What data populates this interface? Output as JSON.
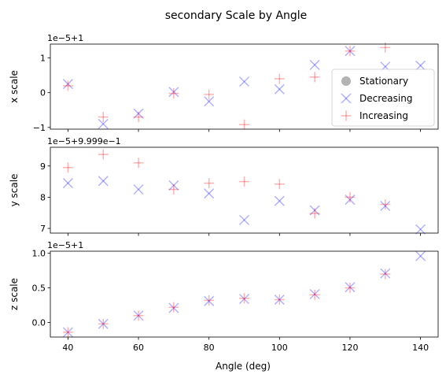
{
  "chart_data": {
    "type": "scatter",
    "title": "secondary Scale by Angle",
    "xlabel": "Angle (deg)",
    "x_ticks": [
      40,
      60,
      80,
      100,
      120,
      140
    ],
    "xlim": [
      35,
      145
    ],
    "legend": {
      "placement": "right",
      "entries": [
        {
          "label": "Stationary",
          "marker": "circle",
          "color": "#808080"
        },
        {
          "label": "Decreasing",
          "marker": "x",
          "color": "#0000ff"
        },
        {
          "label": "Increasing",
          "marker": "plus",
          "color": "#ff0000"
        }
      ]
    },
    "panels": [
      {
        "id": "x",
        "ylabel": "x scale",
        "offset_label": "1e−5+1",
        "ylim": [
          -1.05,
          1.4
        ],
        "y_ticks": [
          -1,
          0,
          1
        ],
        "y_tick_labels": [
          "−1",
          "0",
          "1"
        ],
        "has_legend": true,
        "series": [
          {
            "name": "Decreasing",
            "x": [
              40,
              50,
              60,
              70,
              80,
              90,
              100,
              110,
              120,
              130,
              140
            ],
            "y": [
              0.25,
              -0.9,
              -0.6,
              0.02,
              -0.25,
              0.32,
              0.1,
              0.8,
              1.2,
              0.75,
              0.78
            ]
          },
          {
            "name": "Increasing",
            "x": [
              40,
              50,
              60,
              70,
              80,
              90,
              100,
              110,
              120,
              130
            ],
            "y": [
              0.2,
              -0.7,
              -0.7,
              -0.02,
              -0.05,
              -0.92,
              0.4,
              0.45,
              1.2,
              1.3
            ]
          }
        ]
      },
      {
        "id": "y",
        "ylabel": "y scale",
        "offset_label": "1e−5+9.999e−1",
        "ylim": [
          6.85,
          9.6
        ],
        "y_ticks": [
          7,
          8,
          9
        ],
        "y_tick_labels": [
          "7",
          "8",
          "9"
        ],
        "has_legend": false,
        "series": [
          {
            "name": "Decreasing",
            "x": [
              40,
              50,
              60,
              70,
              80,
              90,
              100,
              110,
              120,
              130,
              140
            ],
            "y": [
              8.45,
              8.52,
              8.25,
              8.38,
              8.12,
              7.27,
              7.88,
              7.58,
              7.92,
              7.72,
              6.97
            ]
          },
          {
            "name": "Increasing",
            "x": [
              40,
              50,
              60,
              70,
              80,
              90,
              100,
              110,
              120,
              130
            ],
            "y": [
              8.95,
              9.37,
              9.1,
              8.25,
              8.45,
              8.5,
              8.42,
              7.48,
              8.0,
              7.77
            ]
          }
        ]
      },
      {
        "id": "z",
        "ylabel": "z scale",
        "offset_label": "1e−5+1",
        "ylim": [
          -0.21,
          1.03
        ],
        "y_ticks": [
          0.0,
          0.5,
          1.0
        ],
        "y_tick_labels": [
          "0.0",
          "0.5",
          "1.0"
        ],
        "has_legend": false,
        "series": [
          {
            "name": "Decreasing",
            "x": [
              40,
              50,
              60,
              70,
              80,
              90,
              100,
              110,
              120,
              130,
              140
            ],
            "y": [
              -0.14,
              -0.02,
              0.1,
              0.21,
              0.31,
              0.34,
              0.33,
              0.41,
              0.51,
              0.71,
              0.96
            ]
          },
          {
            "name": "Increasing",
            "x": [
              40,
              50,
              60,
              70,
              80,
              90,
              100,
              110,
              120,
              130
            ],
            "y": [
              -0.14,
              -0.02,
              0.1,
              0.22,
              0.32,
              0.35,
              0.33,
              0.4,
              0.5,
              0.7
            ]
          }
        ]
      }
    ]
  }
}
